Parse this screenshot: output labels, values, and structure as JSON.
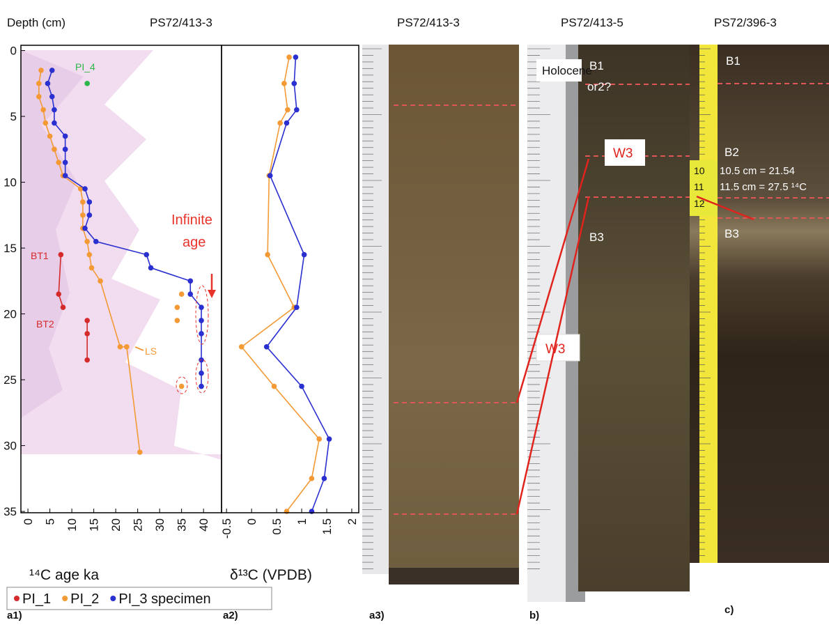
{
  "header": {
    "depth_label": "Depth (cm)",
    "core_a": "PS72/413-3"
  },
  "chart_data": [
    {
      "type": "line",
      "x_label": "¹⁴C age ka",
      "xlim": [
        -1.6,
        44.1
      ],
      "ylim": [
        -0.4,
        35.1
      ],
      "y_inverted": true,
      "xticks": [
        0,
        5,
        10,
        15,
        20,
        25,
        30,
        35,
        40
      ],
      "yticks": [
        0,
        5,
        10,
        15,
        20,
        25,
        30,
        35
      ],
      "series": [
        {
          "name": "PI_1",
          "color": "#d42a2a",
          "x": [
            7.5,
            7,
            8,
            null,
            13.5,
            13.5,
            13.5
          ],
          "values": [
            15.5,
            18.5,
            19.5,
            null,
            20.5,
            21.5,
            23.5
          ]
        },
        {
          "name": "PI_2",
          "color": "#f39a35",
          "x": [
            3,
            2.5,
            2.5,
            3.5,
            4,
            5,
            6,
            7,
            8,
            12,
            12.5,
            12.5,
            12.5,
            13.5,
            14,
            14.5,
            16.5,
            21,
            22.5,
            25.5
          ],
          "values": [
            1.5,
            2.5,
            3.5,
            4.5,
            5.5,
            6.5,
            7.5,
            8.5,
            9.5,
            10.5,
            11.5,
            12.5,
            13.5,
            14.5,
            15.5,
            16.5,
            17.5,
            22.5,
            22.5,
            30.5
          ]
        },
        {
          "name": "PI_3 specimen",
          "color": "#2a2fd0",
          "x": [
            5.5,
            4.5,
            5.5,
            6,
            6,
            8.5,
            8.5,
            8.5,
            8.5,
            13,
            14,
            14,
            13,
            15.5,
            27,
            28,
            37,
            37,
            39.5,
            39.5,
            39.5,
            39.5,
            39.5,
            39.5
          ],
          "values": [
            1.5,
            2.5,
            3.5,
            4.5,
            5.5,
            6.5,
            7.5,
            8.5,
            9.5,
            10.5,
            11.5,
            12.5,
            13.5,
            14.5,
            15.5,
            16.5,
            17.5,
            18.5,
            19.5,
            20.5,
            21.5,
            23.5,
            24.5,
            25.5
          ]
        },
        {
          "color": "#f39a35",
          "line": false,
          "x": [
            35,
            34,
            34,
            35
          ],
          "values": [
            18.5,
            19.5,
            20.5,
            25.5
          ]
        },
        {
          "color": "#2db64a",
          "line": false,
          "x": [
            13.5
          ],
          "values": [
            2.5
          ]
        }
      ],
      "annotations": {
        "pi4": "PI_4",
        "bt1": "BT1",
        "bt2": "BT2",
        "ls": "LS",
        "infinite": [
          "Infinite",
          "age"
        ]
      }
    },
    {
      "type": "line",
      "x_label": "δ¹³C (VPDB)",
      "xlim": [
        -0.6,
        2.14
      ],
      "ylim": [
        -0.4,
        35.1
      ],
      "y_inverted": true,
      "xticks": [
        -0.5,
        0,
        0.5,
        1,
        1.5,
        2
      ],
      "series": [
        {
          "color": "#f39a35",
          "x": [
            0.75,
            0.65,
            0.72,
            0.57,
            0.35,
            0.32,
            0.85,
            -0.2,
            0.45,
            1.35,
            1.2,
            0.7
          ],
          "values": [
            0.5,
            2.5,
            4.5,
            5.5,
            9.5,
            15.5,
            19.5,
            22.5,
            25.5,
            29.5,
            32.5,
            35
          ]
        },
        {
          "color": "#2a2fd0",
          "x": [
            0.88,
            0.85,
            0.9,
            0.7,
            0.37,
            1.05,
            0.9,
            0.3,
            1.0,
            1.55,
            1.45,
            1.2
          ],
          "values": [
            0.5,
            2.5,
            4.5,
            5.5,
            9.5,
            15.5,
            19.5,
            22.5,
            25.5,
            29.5,
            32.5,
            35
          ]
        }
      ]
    }
  ],
  "photos": {
    "a3_title": "PS72/413-3",
    "b_title": "PS72/413-5",
    "c_title": "PS72/396-3",
    "b_labels": {
      "holocene": "Holocene",
      "b1": "B1",
      "or2": "or2?",
      "w3_top": "W3",
      "w3_bottom": "W3",
      "b3": "B3"
    },
    "c_labels": {
      "b1": "B1",
      "b2": "B2",
      "b3": "B3",
      "n10": "10",
      "n11": "11",
      "n12": "12",
      "note1": "10.5 cm = 21.54",
      "note2": "11.5 cm = 27.5 ¹⁴C"
    }
  },
  "panel_labels": [
    "a1)",
    "a2)",
    "a3)",
    "b)",
    "c)"
  ]
}
